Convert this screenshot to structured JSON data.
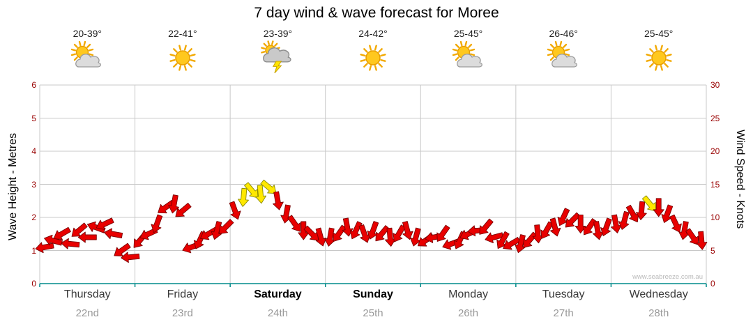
{
  "title": "7 day wind & wave forecast for Moree",
  "watermark": "www.seabreeze.com.au",
  "axes": {
    "left_title": "Wave Height - Metres",
    "right_title": "Wind Speed - Knots",
    "left_ticks": [
      "0",
      "1",
      "2",
      "3",
      "4",
      "5",
      "6"
    ],
    "right_ticks": [
      "0",
      "5",
      "10",
      "15",
      "20",
      "25",
      "30"
    ]
  },
  "forecast_days": [
    {
      "name": "Thursday",
      "date": "22nd",
      "temp": "20-39°",
      "icon": "sun-cloud",
      "weekend": false
    },
    {
      "name": "Friday",
      "date": "23rd",
      "temp": "22-41°",
      "icon": "sunny",
      "weekend": false
    },
    {
      "name": "Saturday",
      "date": "24th",
      "temp": "23-39°",
      "icon": "storm",
      "weekend": true
    },
    {
      "name": "Sunday",
      "date": "25th",
      "temp": "24-42°",
      "icon": "sunny",
      "weekend": true
    },
    {
      "name": "Monday",
      "date": "26th",
      "temp": "25-45°",
      "icon": "sun-cloud",
      "weekend": false
    },
    {
      "name": "Tuesday",
      "date": "27th",
      "temp": "26-46°",
      "icon": "sun-cloud",
      "weekend": false
    },
    {
      "name": "Wednesday",
      "date": "28th",
      "temp": "25-45°",
      "icon": "sunny",
      "weekend": false
    }
  ],
  "chart_data": {
    "type": "scatter",
    "marker": "wind-arrow",
    "title": "7 day wind & wave forecast for Moree",
    "ylabel_left": "Wave Height - Metres",
    "ylabel_right": "Wind Speed - Knots",
    "ylim_left_metres": [
      0,
      6
    ],
    "ylim_right_knots": [
      0,
      30
    ],
    "grid": true,
    "legend": false,
    "x_categories": [
      "Thursday 22nd",
      "Friday 23rd",
      "Saturday 24th",
      "Sunday 25th",
      "Monday 26th",
      "Tuesday 27th",
      "Wednesday 28th"
    ],
    "colors": {
      "arrow": "#e80000",
      "arrow_strong": "#ffe800",
      "axis_line": "#008b8b",
      "tick_text": "#990000",
      "gridline": "#c8c8c8"
    },
    "points_format": [
      "day_fraction_0_to_7",
      "wind_speed_knots",
      "direction_deg",
      "color_flag_0red_1yellow"
    ],
    "points": [
      [
        0.05,
        5.5,
        170,
        0
      ],
      [
        0.14,
        6.5,
        195,
        0
      ],
      [
        0.23,
        7.5,
        150,
        0
      ],
      [
        0.32,
        6.0,
        185,
        0
      ],
      [
        0.41,
        8.0,
        140,
        0
      ],
      [
        0.5,
        7.0,
        180,
        0
      ],
      [
        0.59,
        8.5,
        200,
        0
      ],
      [
        0.68,
        9.0,
        155,
        0
      ],
      [
        0.77,
        7.5,
        190,
        0
      ],
      [
        0.86,
        5.0,
        145,
        0
      ],
      [
        0.95,
        4.0,
        175,
        0
      ],
      [
        1.05,
        6.5,
        130,
        0
      ],
      [
        1.14,
        7.5,
        155,
        0
      ],
      [
        1.23,
        9.0,
        110,
        0
      ],
      [
        1.32,
        11.5,
        145,
        0
      ],
      [
        1.41,
        12.0,
        100,
        0
      ],
      [
        1.5,
        11.0,
        140,
        0
      ],
      [
        1.59,
        5.5,
        160,
        0
      ],
      [
        1.68,
        6.5,
        115,
        0
      ],
      [
        1.77,
        7.5,
        150,
        0
      ],
      [
        1.86,
        8.0,
        105,
        0
      ],
      [
        1.95,
        8.5,
        135,
        0
      ],
      [
        2.05,
        11.0,
        70,
        0
      ],
      [
        2.14,
        13.0,
        95,
        1
      ],
      [
        2.23,
        14.0,
        50,
        1
      ],
      [
        2.32,
        13.5,
        85,
        1
      ],
      [
        2.41,
        14.5,
        40,
        1
      ],
      [
        2.5,
        12.5,
        80,
        0
      ],
      [
        2.59,
        10.5,
        100,
        0
      ],
      [
        2.68,
        9.0,
        55,
        0
      ],
      [
        2.77,
        8.0,
        90,
        0
      ],
      [
        2.86,
        7.5,
        45,
        0
      ],
      [
        2.95,
        7.0,
        75,
        0
      ],
      [
        3.05,
        7.0,
        100,
        0
      ],
      [
        3.14,
        7.5,
        125,
        0
      ],
      [
        3.23,
        8.5,
        80,
        0
      ],
      [
        3.32,
        8.0,
        115,
        0
      ],
      [
        3.41,
        7.5,
        70,
        0
      ],
      [
        3.5,
        8.0,
        110,
        0
      ],
      [
        3.59,
        7.5,
        130,
        0
      ],
      [
        3.68,
        7.0,
        85,
        0
      ],
      [
        3.77,
        7.5,
        120,
        0
      ],
      [
        3.86,
        8.0,
        75,
        0
      ],
      [
        3.95,
        7.0,
        105,
        0
      ],
      [
        4.05,
        6.5,
        145,
        0
      ],
      [
        4.14,
        7.0,
        170,
        0
      ],
      [
        4.23,
        7.5,
        125,
        0
      ],
      [
        4.32,
        6.0,
        160,
        0
      ],
      [
        4.41,
        6.5,
        115,
        0
      ],
      [
        4.5,
        7.5,
        155,
        0
      ],
      [
        4.59,
        8.0,
        175,
        0
      ],
      [
        4.68,
        8.5,
        130,
        0
      ],
      [
        4.77,
        7.0,
        165,
        0
      ],
      [
        4.86,
        6.5,
        120,
        0
      ],
      [
        4.95,
        6.0,
        150,
        0
      ],
      [
        5.05,
        6.0,
        105,
        0
      ],
      [
        5.14,
        6.5,
        130,
        0
      ],
      [
        5.23,
        7.5,
        85,
        0
      ],
      [
        5.32,
        8.0,
        120,
        0
      ],
      [
        5.41,
        8.5,
        75,
        0
      ],
      [
        5.5,
        10.0,
        115,
        0
      ],
      [
        5.59,
        9.5,
        135,
        0
      ],
      [
        5.68,
        9.0,
        90,
        0
      ],
      [
        5.77,
        8.5,
        125,
        0
      ],
      [
        5.86,
        8.0,
        80,
        0
      ],
      [
        5.95,
        8.5,
        110,
        0
      ],
      [
        6.05,
        9.0,
        80,
        0
      ],
      [
        6.14,
        9.5,
        105,
        0
      ],
      [
        6.23,
        10.5,
        60,
        0
      ],
      [
        6.32,
        11.0,
        95,
        0
      ],
      [
        6.41,
        12.0,
        50,
        1
      ],
      [
        6.5,
        11.5,
        90,
        0
      ],
      [
        6.59,
        10.5,
        110,
        0
      ],
      [
        6.68,
        9.0,
        65,
        0
      ],
      [
        6.77,
        8.0,
        100,
        0
      ],
      [
        6.86,
        7.0,
        55,
        0
      ],
      [
        6.95,
        6.5,
        85,
        0
      ]
    ]
  }
}
